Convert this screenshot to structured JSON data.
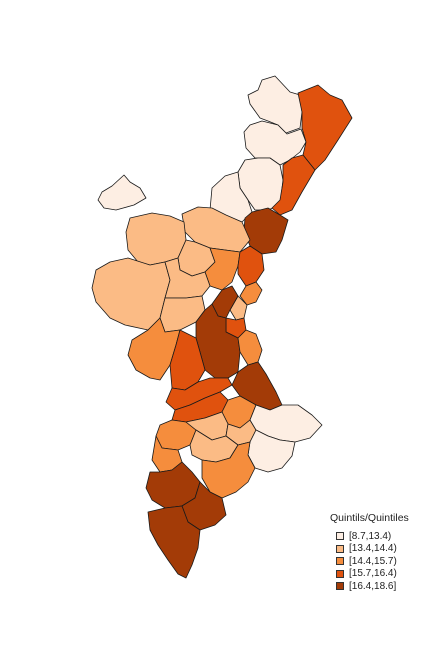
{
  "legend": {
    "title": "Quintils/Quintiles",
    "items": [
      {
        "label": "[8.7,13.4)",
        "color": "#fdeee3"
      },
      {
        "label": "[13.4,14.4)",
        "color": "#fbbb85"
      },
      {
        "label": "[14.4,15.7)",
        "color": "#f58d3d"
      },
      {
        "label": "[15.7,16.4)",
        "color": "#e0520e"
      },
      {
        "label": "[16.4,18.6]",
        "color": "#a33b07"
      }
    ]
  }
}
